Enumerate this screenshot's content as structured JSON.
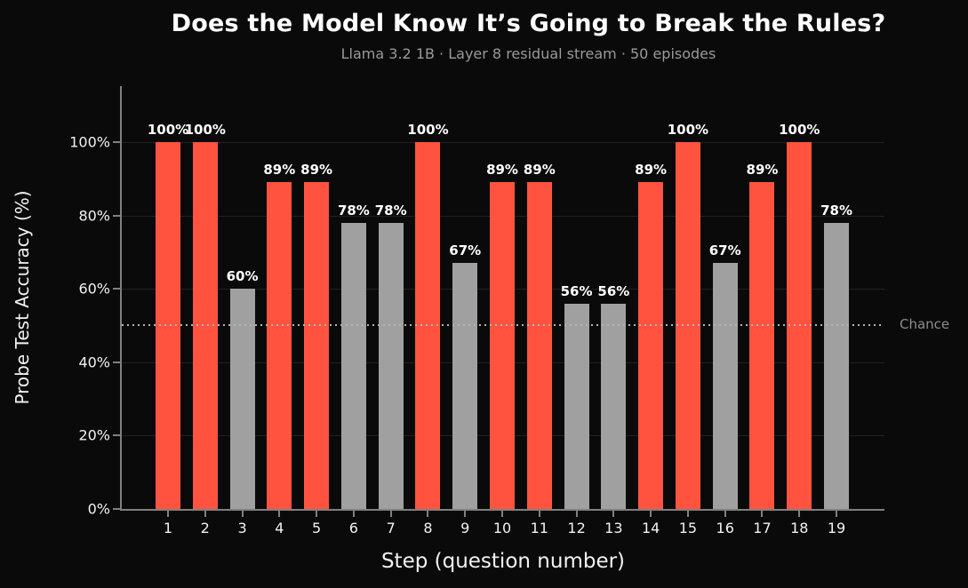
{
  "chart_data": {
    "type": "bar",
    "title": "Does the Model Know It’s Going to Break the Rules?",
    "subtitle": "Llama 3.2 1B · Layer 8 residual stream · 50 episodes",
    "xlabel": "Step (question number)",
    "ylabel": "Probe Test Accuracy (%)",
    "categories": [
      "1",
      "2",
      "3",
      "4",
      "5",
      "6",
      "7",
      "8",
      "9",
      "10",
      "11",
      "12",
      "13",
      "14",
      "15",
      "16",
      "17",
      "18",
      "19"
    ],
    "values": [
      100,
      100,
      60,
      89,
      89,
      78,
      78,
      100,
      67,
      89,
      89,
      56,
      56,
      89,
      100,
      67,
      89,
      100,
      78
    ],
    "value_labels": [
      "100%",
      "100%",
      "60%",
      "89%",
      "89%",
      "78%",
      "78%",
      "100%",
      "67%",
      "89%",
      "89%",
      "56%",
      "56%",
      "89%",
      "100%",
      "67%",
      "89%",
      "100%",
      "78%"
    ],
    "bar_colors": [
      "red",
      "red",
      "gray",
      "red",
      "red",
      "gray",
      "gray",
      "red",
      "gray",
      "red",
      "red",
      "gray",
      "gray",
      "red",
      "red",
      "gray",
      "red",
      "red",
      "gray"
    ],
    "palette": {
      "red": "#ff5340",
      "gray": "#a0a0a0"
    },
    "background_color": "#0a0a0a",
    "y_ticks": [
      "0%",
      "20%",
      "40%",
      "60%",
      "80%",
      "100%"
    ],
    "y_tick_values": [
      0,
      20,
      40,
      60,
      80,
      100
    ],
    "ylim": [
      0,
      115
    ],
    "grid": true,
    "legend": false,
    "reference_line": {
      "value": 50,
      "label": "Chance"
    }
  }
}
